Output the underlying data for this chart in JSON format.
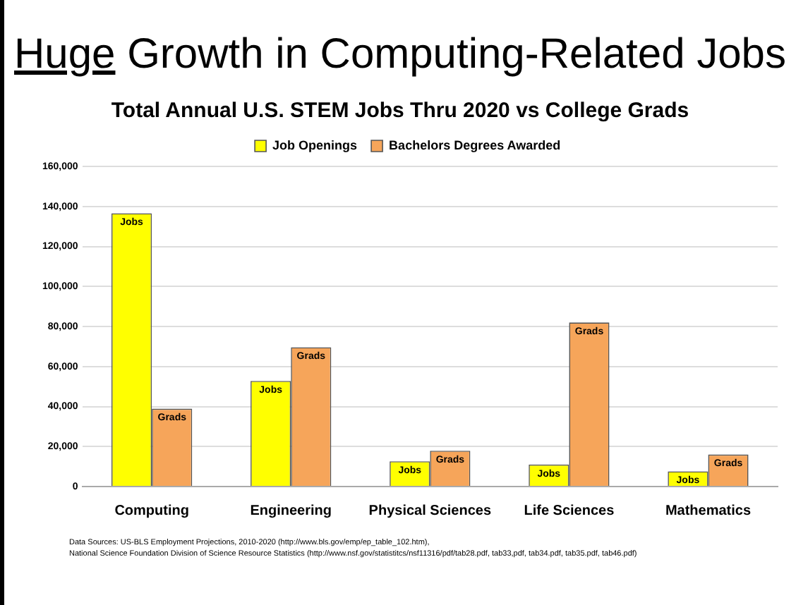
{
  "chart_data": {
    "type": "bar",
    "title": "Huge Growth in Computing-Related Jobs",
    "subtitle": "Total Annual U.S. STEM Jobs Thru 2020 vs College Grads",
    "categories": [
      "Computing",
      "Engineering",
      "Physical Sciences",
      "Life Sciences",
      "Mathematics"
    ],
    "series": [
      {
        "name": "Job Openings",
        "color": "#ffff00",
        "values": [
          136600,
          52800,
          12600,
          11000,
          7600
        ],
        "value_labels": [
          "Jobs",
          "Jobs",
          "Jobs",
          "Jobs",
          "Jobs"
        ]
      },
      {
        "name": "Bachelors Degrees Awarded",
        "color": "#f6a55a",
        "values": [
          38900,
          69600,
          17900,
          82000,
          16000
        ],
        "value_labels": [
          "Grads",
          "Grads",
          "Grads",
          "Grads",
          "Grads"
        ]
      }
    ],
    "ylim": [
      0,
      160000
    ],
    "yticks": [
      0,
      {
        "value": 20000,
        "label": "20,000"
      },
      {
        "value": 40000,
        "label": "40,000"
      },
      {
        "value": 60000,
        "label": "60,000"
      },
      {
        "value": 80000,
        "label": "80,000"
      },
      {
        "value": 100000,
        "label": "100,000"
      },
      {
        "value": 120000,
        "label": "120,000"
      },
      {
        "value": 140000,
        "label": "140,000"
      },
      {
        "value": 160000,
        "label": "160,000"
      }
    ],
    "grid": "y",
    "legend": "top",
    "annotations": [
      "Data Sources: US-BLS Employment Projections, 2010-2020 (http://www.bls.gov/emp/ep_table_102.htm),",
      "National Science Foundation Division of Science Resource Statistics (http://www.nsf.gov/statistitcs/nsf11316/pdf/tab28.pdf, tab33,pdf, tab34.pdf, tab35.pdf, tab46.pdf)"
    ]
  }
}
